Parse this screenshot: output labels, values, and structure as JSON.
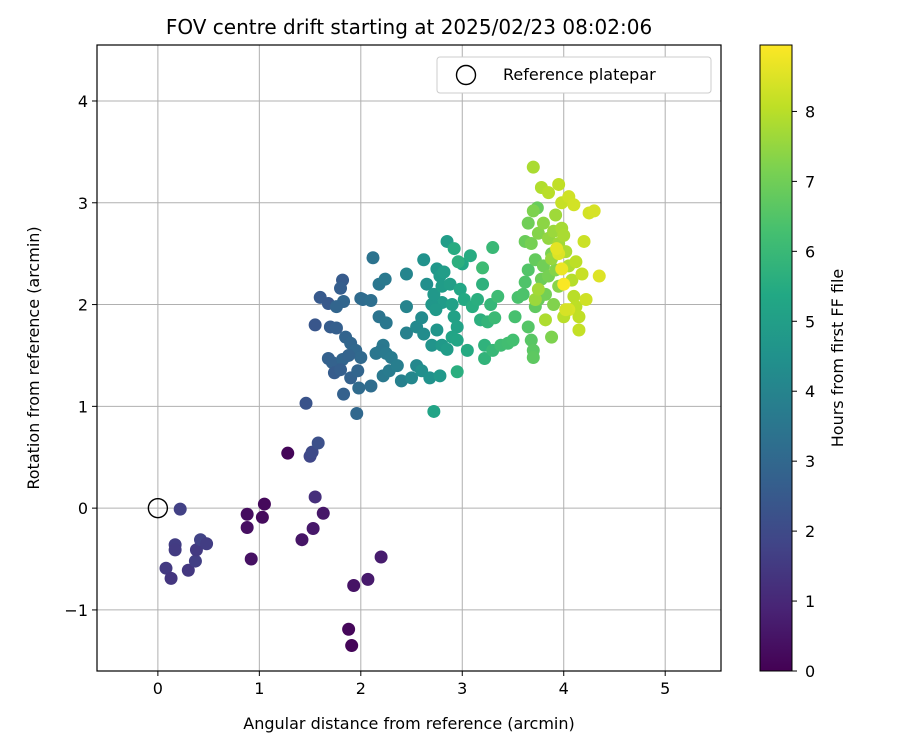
{
  "chart_data": {
    "type": "scatter",
    "title": "FOV centre drift starting at 2025/02/23 08:02:06",
    "xlabel": "Angular distance from reference (arcmin)",
    "ylabel": "Rotation from reference (arcmin)",
    "xlim": [
      -0.6,
      5.55
    ],
    "ylim": [
      -1.6,
      4.55
    ],
    "xticks": [
      0,
      1,
      2,
      3,
      4,
      5
    ],
    "yticks": [
      -1,
      0,
      1,
      2,
      3,
      4
    ],
    "xtick_labels": [
      "0",
      "1",
      "2",
      "3",
      "4",
      "5"
    ],
    "ytick_labels": [
      "−1",
      "0",
      "1",
      "2",
      "3",
      "4"
    ],
    "grid": true,
    "legend": {
      "placement": "top-right",
      "entries": [
        {
          "label": "Reference platepar",
          "marker": "open-circle"
        }
      ]
    },
    "colorbar": {
      "label": "Hours from first FF file",
      "colormap": "viridis",
      "range": [
        0,
        8.95
      ],
      "ticks": [
        0,
        1,
        2,
        3,
        4,
        5,
        6,
        7,
        8
      ],
      "tick_labels": [
        "0",
        "1",
        "2",
        "3",
        "4",
        "5",
        "6",
        "7",
        "8"
      ]
    },
    "reference_point": {
      "x": 0,
      "y": 0
    },
    "series": [
      {
        "points": [
          [
            1.28,
            0.54,
            0.1
          ],
          [
            1.05,
            0.04,
            0.2
          ],
          [
            1.03,
            -0.09,
            0.25
          ],
          [
            0.88,
            -0.06,
            0.3
          ],
          [
            0.88,
            -0.19,
            0.35
          ],
          [
            0.92,
            -0.5,
            0.4
          ],
          [
            1.42,
            -0.31,
            0.5
          ],
          [
            1.63,
            -0.05,
            0.55
          ],
          [
            1.53,
            -0.2,
            0.6
          ],
          [
            1.88,
            -1.19,
            0.15
          ],
          [
            1.91,
            -1.35,
            0.1
          ],
          [
            1.93,
            -0.76,
            0.45
          ],
          [
            2.07,
            -0.7,
            0.65
          ],
          [
            2.2,
            -0.48,
            0.7
          ],
          [
            1.55,
            0.11,
            1.2
          ],
          [
            0.08,
            -0.59,
            1.5
          ],
          [
            0.13,
            -0.69,
            1.4
          ],
          [
            0.17,
            -0.36,
            1.6
          ],
          [
            0.17,
            -0.41,
            1.55
          ],
          [
            0.22,
            -0.01,
            1.7
          ],
          [
            0.3,
            -0.61,
            1.45
          ],
          [
            0.37,
            -0.52,
            1.65
          ],
          [
            0.38,
            -0.41,
            1.5
          ],
          [
            0.42,
            -0.31,
            1.75
          ],
          [
            0.48,
            -0.35,
            1.6
          ],
          [
            1.5,
            0.51,
            1.9
          ],
          [
            1.52,
            0.55,
            2.0
          ],
          [
            1.58,
            0.64,
            2.2
          ],
          [
            1.46,
            1.03,
            2.3
          ],
          [
            1.55,
            1.8,
            2.4
          ],
          [
            1.6,
            2.07,
            2.5
          ],
          [
            1.68,
            2.01,
            2.45
          ],
          [
            1.7,
            1.78,
            2.6
          ],
          [
            1.76,
            1.77,
            2.7
          ],
          [
            1.82,
            2.24,
            2.55
          ],
          [
            1.8,
            2.16,
            2.65
          ],
          [
            1.68,
            1.47,
            2.75
          ],
          [
            1.72,
            1.43,
            2.8
          ],
          [
            1.74,
            1.33,
            2.6
          ],
          [
            1.82,
            1.46,
            2.9
          ],
          [
            1.85,
            1.68,
            2.85
          ],
          [
            1.9,
            1.62,
            2.95
          ],
          [
            1.8,
            1.36,
            2.7
          ],
          [
            1.9,
            1.28,
            2.8
          ],
          [
            1.95,
            1.55,
            3.0
          ],
          [
            2.0,
            1.48,
            3.05
          ],
          [
            1.97,
            1.35,
            2.9
          ],
          [
            1.88,
            1.5,
            2.85
          ],
          [
            1.83,
            1.12,
            2.75
          ],
          [
            1.96,
            0.93,
            3.0
          ],
          [
            1.83,
            2.03,
            2.95
          ],
          [
            1.76,
            1.98,
            2.9
          ],
          [
            2.0,
            2.06,
            3.1
          ],
          [
            2.02,
            2.05,
            3.15
          ],
          [
            1.98,
            1.18,
            3.1
          ],
          [
            2.1,
            1.2,
            3.2
          ],
          [
            2.1,
            2.04,
            3.25
          ],
          [
            2.12,
            2.46,
            3.4
          ],
          [
            2.18,
            2.2,
            3.5
          ],
          [
            2.24,
            2.25,
            3.6
          ],
          [
            2.18,
            1.88,
            3.45
          ],
          [
            2.25,
            1.82,
            3.55
          ],
          [
            2.15,
            1.52,
            3.5
          ],
          [
            2.22,
            1.6,
            3.6
          ],
          [
            2.2,
            1.55,
            3.55
          ],
          [
            2.25,
            1.52,
            3.65
          ],
          [
            2.3,
            1.48,
            3.7
          ],
          [
            2.22,
            1.3,
            3.6
          ],
          [
            2.28,
            1.35,
            3.7
          ],
          [
            2.36,
            1.4,
            3.8
          ],
          [
            2.4,
            1.25,
            3.85
          ],
          [
            2.45,
            1.72,
            3.9
          ],
          [
            2.45,
            1.98,
            4.0
          ],
          [
            2.45,
            2.3,
            4.05
          ],
          [
            2.5,
            1.28,
            4.1
          ],
          [
            2.55,
            1.4,
            4.15
          ],
          [
            2.55,
            1.78,
            4.2
          ],
          [
            2.6,
            1.87,
            4.25
          ],
          [
            2.62,
            1.71,
            4.3
          ],
          [
            2.65,
            2.2,
            4.4
          ],
          [
            2.62,
            2.44,
            4.5
          ],
          [
            2.6,
            1.35,
            4.4
          ],
          [
            2.68,
            1.28,
            4.5
          ],
          [
            2.7,
            1.6,
            4.6
          ],
          [
            2.75,
            1.75,
            4.65
          ],
          [
            2.75,
            2.35,
            4.7
          ],
          [
            2.78,
            1.3,
            4.75
          ],
          [
            2.8,
            1.6,
            4.8
          ],
          [
            2.8,
            2.02,
            4.85
          ],
          [
            2.85,
            1.56,
            4.9
          ],
          [
            2.85,
            2.62,
            4.95
          ],
          [
            2.7,
            2.0,
            4.7
          ],
          [
            2.72,
            2.1,
            4.75
          ],
          [
            2.74,
            1.95,
            4.8
          ],
          [
            2.78,
            2.28,
            4.85
          ],
          [
            2.8,
            2.18,
            4.9
          ],
          [
            2.82,
            2.32,
            4.95
          ],
          [
            2.88,
            2.2,
            5.0
          ],
          [
            2.9,
            2.0,
            5.05
          ],
          [
            2.92,
            1.88,
            5.1
          ],
          [
            2.95,
            1.78,
            5.15
          ],
          [
            2.9,
            1.68,
            5.2
          ],
          [
            2.95,
            1.65,
            5.25
          ],
          [
            2.98,
            2.15,
            5.3
          ],
          [
            3.0,
            2.4,
            5.35
          ],
          [
            3.02,
            2.05,
            5.4
          ],
          [
            3.05,
            1.55,
            5.45
          ],
          [
            3.08,
            2.48,
            5.5
          ],
          [
            3.1,
            1.98,
            5.55
          ],
          [
            3.15,
            2.05,
            5.6
          ],
          [
            3.18,
            1.85,
            5.65
          ],
          [
            3.2,
            2.2,
            5.7
          ],
          [
            3.22,
            1.6,
            5.75
          ],
          [
            3.22,
            1.47,
            5.8
          ],
          [
            3.25,
            1.83,
            5.85
          ],
          [
            3.28,
            2.0,
            5.9
          ],
          [
            3.3,
            1.55,
            5.95
          ],
          [
            3.3,
            2.56,
            6.0
          ],
          [
            3.32,
            1.87,
            6.05
          ],
          [
            3.35,
            2.08,
            6.1
          ],
          [
            3.38,
            1.6,
            6.15
          ],
          [
            3.45,
            1.62,
            6.2
          ],
          [
            3.5,
            1.65,
            6.25
          ],
          [
            3.52,
            1.88,
            6.3
          ],
          [
            3.55,
            2.07,
            6.35
          ],
          [
            2.72,
            0.95,
            5.2
          ],
          [
            2.95,
            1.34,
            5.6
          ],
          [
            3.2,
            2.36,
            6.1
          ],
          [
            2.92,
            2.55,
            5.5
          ],
          [
            2.96,
            2.42,
            5.65
          ],
          [
            3.6,
            2.1,
            6.4
          ],
          [
            3.62,
            2.22,
            6.45
          ],
          [
            3.65,
            2.34,
            6.5
          ],
          [
            3.65,
            1.78,
            6.55
          ],
          [
            3.68,
            1.65,
            6.6
          ],
          [
            3.7,
            1.55,
            6.65
          ],
          [
            3.7,
            1.48,
            6.7
          ],
          [
            3.72,
            1.98,
            6.75
          ],
          [
            3.72,
            2.44,
            6.8
          ],
          [
            3.74,
            2.95,
            6.85
          ],
          [
            3.75,
            2.05,
            6.9
          ],
          [
            3.78,
            2.25,
            6.95
          ],
          [
            3.8,
            2.38,
            7.0
          ],
          [
            3.82,
            2.1,
            7.05
          ],
          [
            3.85,
            2.28,
            7.1
          ],
          [
            3.88,
            2.5,
            7.15
          ],
          [
            3.88,
            1.68,
            7.2
          ],
          [
            3.9,
            2.0,
            7.25
          ],
          [
            3.92,
            2.34,
            7.3
          ],
          [
            3.95,
            2.18,
            7.35
          ],
          [
            3.62,
            2.62,
            6.9
          ],
          [
            3.65,
            2.8,
            7.0
          ],
          [
            3.68,
            2.6,
            7.1
          ],
          [
            3.7,
            2.92,
            7.2
          ],
          [
            3.75,
            2.7,
            7.3
          ],
          [
            3.8,
            2.8,
            7.4
          ],
          [
            3.85,
            2.65,
            7.5
          ],
          [
            3.88,
            2.45,
            7.55
          ],
          [
            3.9,
            2.72,
            7.6
          ],
          [
            3.92,
            2.88,
            7.65
          ],
          [
            3.95,
            2.6,
            7.7
          ],
          [
            3.98,
            2.75,
            7.75
          ],
          [
            4.0,
            2.68,
            7.8
          ],
          [
            4.02,
            2.52,
            7.85
          ],
          [
            4.05,
            2.38,
            7.9
          ],
          [
            4.08,
            2.24,
            7.95
          ],
          [
            4.1,
            2.08,
            8.0
          ],
          [
            4.12,
            1.98,
            8.05
          ],
          [
            4.15,
            1.88,
            8.1
          ],
          [
            4.15,
            1.75,
            8.15
          ],
          [
            4.18,
            2.3,
            8.2
          ],
          [
            4.2,
            2.62,
            8.25
          ],
          [
            4.22,
            2.05,
            8.3
          ],
          [
            4.25,
            2.9,
            8.35
          ],
          [
            4.3,
            2.92,
            8.4
          ],
          [
            4.35,
            2.28,
            8.5
          ],
          [
            3.7,
            3.35,
            7.8
          ],
          [
            3.78,
            3.15,
            7.9
          ],
          [
            3.85,
            3.1,
            8.0
          ],
          [
            3.95,
            3.18,
            8.1
          ],
          [
            3.98,
            3.0,
            8.2
          ],
          [
            4.05,
            3.06,
            8.3
          ],
          [
            4.1,
            2.98,
            8.35
          ],
          [
            3.95,
            2.5,
            8.5
          ],
          [
            3.98,
            2.35,
            8.7
          ],
          [
            4.0,
            2.2,
            8.9
          ],
          [
            3.93,
            2.55,
            8.6
          ],
          [
            4.05,
            1.95,
            8.45
          ],
          [
            3.72,
            2.05,
            7.6
          ],
          [
            3.75,
            2.15,
            7.7
          ],
          [
            3.82,
            1.85,
            7.85
          ],
          [
            4.0,
            1.88,
            8.0
          ],
          [
            4.02,
            1.95,
            8.4
          ],
          [
            4.12,
            2.42,
            8.05
          ]
        ]
      }
    ]
  }
}
